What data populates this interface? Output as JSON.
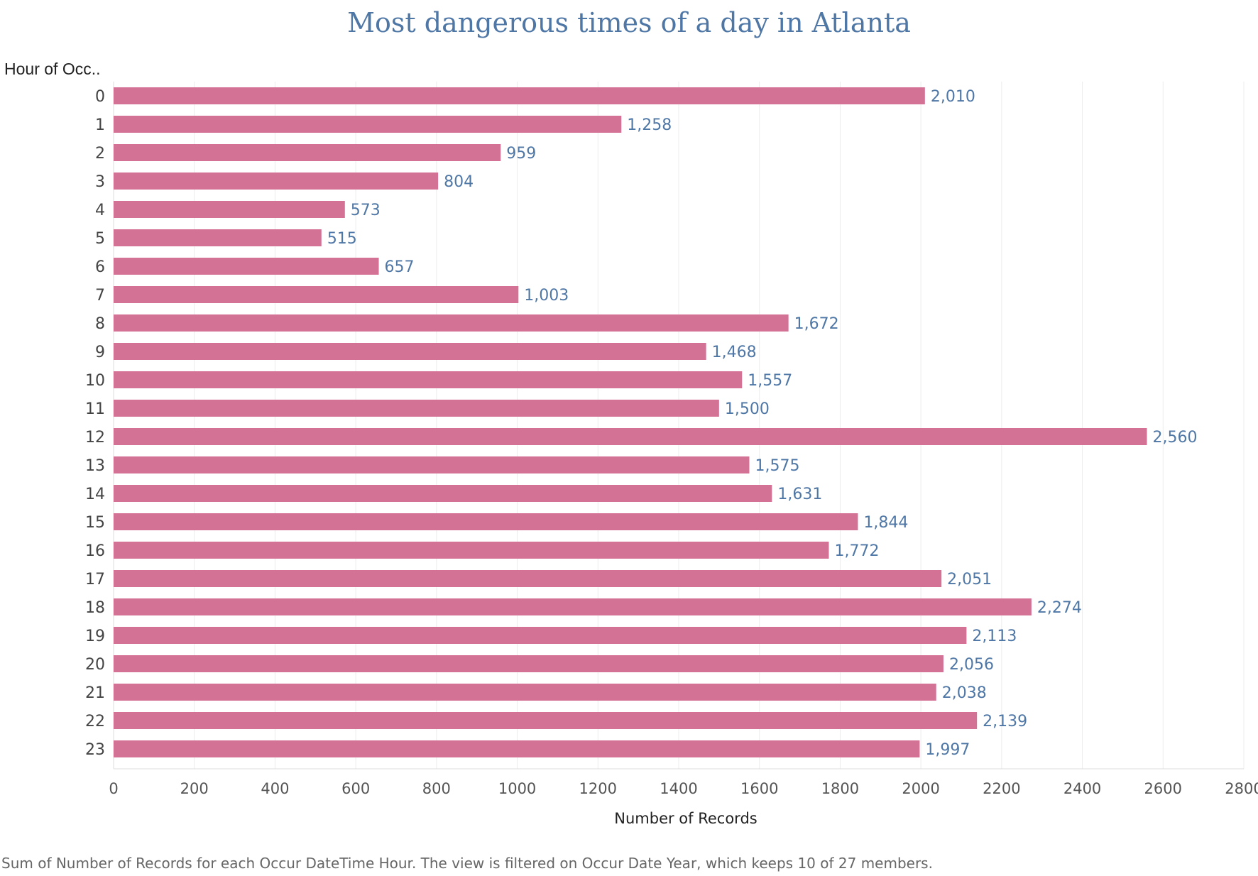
{
  "chart_data": {
    "type": "bar",
    "orientation": "horizontal",
    "title": "Most dangerous times of a day in Atlanta",
    "row_header": "Hour of Occ..",
    "xlabel": "Number of Records",
    "ylabel": "",
    "xlim": [
      0,
      2800
    ],
    "x_ticks": [
      0,
      200,
      400,
      600,
      800,
      1000,
      1200,
      1400,
      1600,
      1800,
      2000,
      2200,
      2400,
      2600,
      2800
    ],
    "categories": [
      "0",
      "1",
      "2",
      "3",
      "4",
      "5",
      "6",
      "7",
      "8",
      "9",
      "10",
      "11",
      "12",
      "13",
      "14",
      "15",
      "16",
      "17",
      "18",
      "19",
      "20",
      "21",
      "22",
      "23"
    ],
    "values": [
      2010,
      1258,
      959,
      804,
      573,
      515,
      657,
      1003,
      1672,
      1468,
      1557,
      1500,
      2560,
      1575,
      1631,
      1844,
      1772,
      2051,
      2274,
      2113,
      2056,
      2038,
      2139,
      1997
    ],
    "value_labels": [
      "2,010",
      "1,258",
      "959",
      "804",
      "573",
      "515",
      "657",
      "1,003",
      "1,672",
      "1,468",
      "1,557",
      "1,500",
      "2,560",
      "1,575",
      "1,631",
      "1,844",
      "1,772",
      "2,051",
      "2,274",
      "2,113",
      "2,056",
      "2,038",
      "2,139",
      "1,997"
    ],
    "grid": "vertical",
    "bar_color": "#d37295",
    "label_color": "#4f77a6"
  },
  "footnote": "Sum of Number of Records for each Occur DateTime Hour. The view is filtered on Occur Date Year, which keeps 10 of 27 members."
}
